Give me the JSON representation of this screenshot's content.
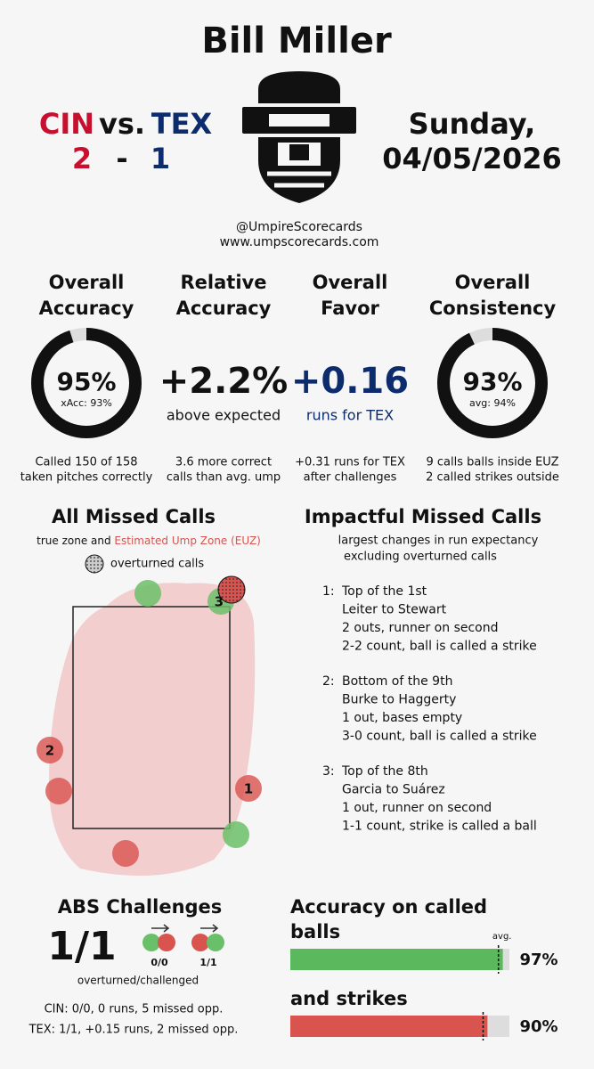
{
  "header": {
    "umpire": "Bill Miller",
    "away": "CIN",
    "vs": "vs.",
    "home": "TEX",
    "away_score": "2",
    "dash": "-",
    "home_score": "1",
    "day": "Sunday,",
    "date": "04/05/2026",
    "handle": "@UmpireScorecards",
    "site": "www.umpscorecards.com"
  },
  "metrics": [
    {
      "title": [
        "Overall",
        "Accuracy"
      ],
      "gauge": {
        "value": 95,
        "label": "95%"
      },
      "sub": "xAcc: 93%",
      "note": [
        "Called 150 of 158",
        "taken pitches correctly"
      ]
    },
    {
      "title": [
        "Relative",
        "Accuracy"
      ],
      "big": "+2.2%",
      "sub": "above expected",
      "note": [
        "3.6 more correct",
        "calls than avg. ump"
      ]
    },
    {
      "title": [
        "Overall",
        "Favor"
      ],
      "big": "+0.16",
      "sub": "runs for TEX",
      "note": [
        "+0.31 runs for TEX",
        "after challenges"
      ]
    },
    {
      "title": [
        "Overall",
        "Consistency"
      ],
      "gauge": {
        "value": 93,
        "label": "93%"
      },
      "sub": "avg: 94%",
      "note": [
        "9 calls balls inside EUZ",
        "2 called strikes outside"
      ]
    }
  ],
  "missed": {
    "title": "All Missed Calls",
    "sub_a": "true zone and ",
    "sub_b": "Estimated Ump Zone (EUZ)",
    "legend": "overturned calls",
    "labels": [
      "1",
      "2",
      "3"
    ]
  },
  "impactful": {
    "title": "Impactful Missed Calls",
    "sub": [
      "largest changes in run expectancy",
      "excluding overturned calls"
    ],
    "items": [
      {
        "num": "1:",
        "lines": [
          "Top of the 1st",
          "Leiter to Stewart",
          "2 outs, runner on second",
          "2-2 count, ball is called a strike"
        ]
      },
      {
        "num": "2:",
        "lines": [
          "Bottom of the 9th",
          "Burke to Haggerty",
          "1 out, bases empty",
          "3-0 count, ball is called a strike"
        ]
      },
      {
        "num": "3:",
        "lines": [
          "Top of the 8th",
          "Garcia to Suárez",
          "1 out, runner on second",
          "1-1 count, strike is called a ball"
        ]
      }
    ]
  },
  "abs": {
    "title": "ABS Challenges",
    "total": "1/1",
    "pair_a": "0/0",
    "pair_b": "1/1",
    "caption": "overturned/challenged",
    "cin": "CIN: 0/0, 0 runs, 5 missed opp.",
    "tex": "TEX: 1/1, +0.15 runs, 2 missed opp."
  },
  "called": {
    "title_a": "Accuracy on called",
    "title_b": "balls",
    "title_c": "and strikes",
    "avg_label": "avg.",
    "balls": {
      "value": 97,
      "label": "97%",
      "avg": 95
    },
    "strikes": {
      "value": 90,
      "label": "90%",
      "avg": 88
    }
  }
}
